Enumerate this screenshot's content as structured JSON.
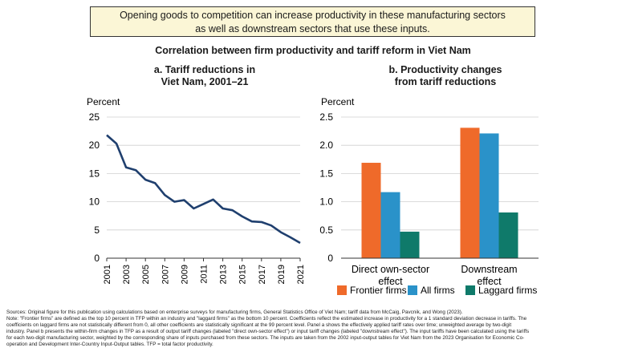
{
  "callout": {
    "line1": "Opening goods to competition can increase productivity in these manufacturing sectors",
    "line2": "as well as downstream sectors that use these inputs."
  },
  "figure_title": "Correlation between firm productivity and tariff reform in Viet Nam",
  "panel_a": {
    "title_line1": "a. Tariff reductions in",
    "title_line2": "Viet Nam, 2001–21"
  },
  "panel_b": {
    "title_line1": "b. Productivity changes",
    "title_line2": "from tariff reductions"
  },
  "colors": {
    "line": "#1f3f6e",
    "frontier": "#ef6a2a",
    "all": "#2a92c9",
    "laggard": "#0f7a6a",
    "callout_bg": "#fbf6d6"
  },
  "chart_data": [
    {
      "type": "line",
      "ylabel": "Percent",
      "ylim": [
        0,
        25
      ],
      "yticks": [
        "0",
        "5",
        "10",
        "15",
        "20",
        "25"
      ],
      "xticks": [
        "2001",
        "2003",
        "2005",
        "2007",
        "2009",
        "2011",
        "2013",
        "2015",
        "2017",
        "2019",
        "2021"
      ],
      "x": [
        2001,
        2002,
        2003,
        2004,
        2005,
        2006,
        2007,
        2008,
        2009,
        2010,
        2011,
        2012,
        2013,
        2014,
        2015,
        2016,
        2017,
        2018,
        2019,
        2020,
        2021
      ],
      "values": [
        21.8,
        20.3,
        16.1,
        15.6,
        13.9,
        13.3,
        11.2,
        10.0,
        10.3,
        8.8,
        9.6,
        10.4,
        8.8,
        8.5,
        7.4,
        6.5,
        6.4,
        5.8,
        4.6,
        3.7,
        2.7
      ]
    },
    {
      "type": "bar",
      "ylabel": "Percent",
      "ylim": [
        0,
        2.5
      ],
      "yticks": [
        "0",
        "0.5",
        "1.0",
        "1.5",
        "2.0",
        "2.5"
      ],
      "categories": [
        {
          "line1": "Direct own-sector",
          "line2": "effect"
        },
        {
          "line1": "Downstream",
          "line2": "effect"
        }
      ],
      "series": [
        {
          "name": "Frontier firms",
          "values": [
            1.69,
            2.31
          ]
        },
        {
          "name": "All firms",
          "values": [
            1.17,
            2.21
          ]
        },
        {
          "name": "Laggard firms",
          "values": [
            0.47,
            0.81
          ]
        }
      ],
      "legend": "bottom"
    }
  ],
  "sources": [
    "Sources: Original figure for this publication using calculations based on enterprise surveys for manufacturing firms, General Statistics Office of Viet Nam; tariff data from McCaig, Pavcnik, and Wong (2023).",
    "Note: \"Frontier firms\" are defined as the top 10 percent in TFP within an industry and \"laggard firms\" as the bottom 10 percent. Coefficients reflect the estimated increase in productivity for a 1 standard deviation decrease in tariffs. The",
    "coefficients on laggard firms are not statistically different from 0, all other coefficients are statistically significant at the 99 percent level. Panel a shows the effectively applied tariff rates over time; unweighted average by two-digit",
    "industry. Panel b presents the within-firm changes in TFP as a result of output tariff changes (labeled \"direct own-sector effect\") or input tariff changes (labeled \"downstream effect\"). The input tariffs have been calculated using the tariffs",
    "for each two-digit manufacturing sector, weighted by the corresponding share of inputs purchased from these sectors. The inputs are taken from the 2002 input-output tables for Viet Nam from the 2023 Organisation for Economic Co-",
    "operation and Development Inter-Country Input-Output tables. TFP = total factor productivity."
  ]
}
